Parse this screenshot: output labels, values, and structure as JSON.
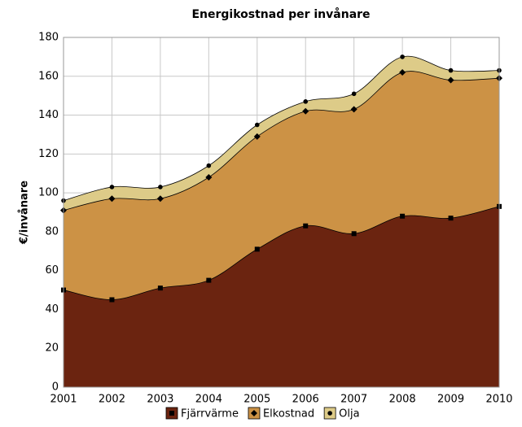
{
  "chart_data": {
    "type": "area",
    "stacked": true,
    "title": "Energikostnad per invånare",
    "ylabel": "€/invånare",
    "x": [
      2001,
      2002,
      2003,
      2004,
      2005,
      2006,
      2007,
      2008,
      2009,
      2010
    ],
    "xlim": [
      2001,
      2010
    ],
    "xticks": [
      2001,
      2002,
      2003,
      2004,
      2005,
      2006,
      2007,
      2008,
      2009,
      2010
    ],
    "ylim": [
      0,
      180
    ],
    "yticks": [
      0,
      20,
      40,
      60,
      80,
      100,
      120,
      140,
      160,
      180
    ],
    "grid": true,
    "legend": "bottom",
    "series": [
      {
        "name": "Fjärrvärme",
        "color": "#6b2410",
        "marker": "square",
        "values": [
          50,
          45,
          51,
          55,
          71,
          83,
          79,
          88,
          87,
          93
        ]
      },
      {
        "name": "Elkostnad",
        "color": "#cc9245",
        "marker": "diamond",
        "values": [
          41,
          52,
          46,
          53,
          58,
          59,
          64,
          74,
          71,
          66
        ]
      },
      {
        "name": "Olja",
        "color": "#ddcb88",
        "marker": "circle",
        "values": [
          5,
          6,
          6,
          6,
          6,
          5,
          8,
          8,
          5,
          4
        ]
      }
    ]
  }
}
